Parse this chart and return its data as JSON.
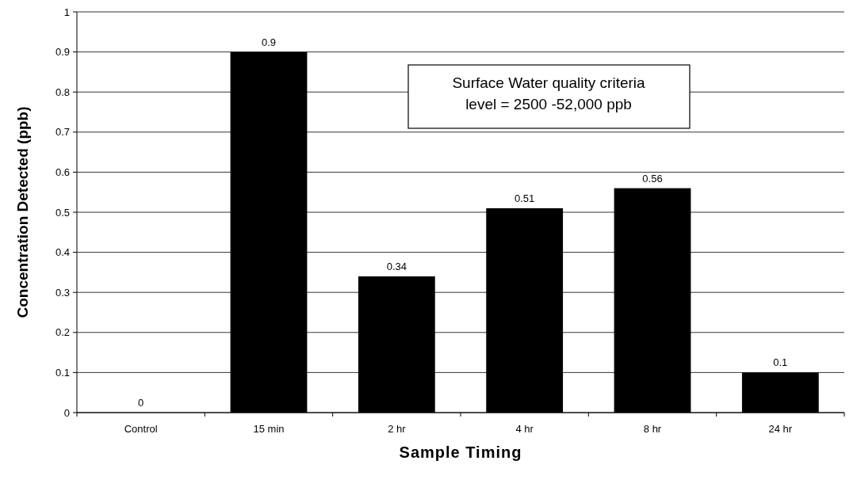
{
  "chart_data": {
    "type": "bar",
    "xlabel": "Sample Timing",
    "ylabel": "Concentration Detected (ppb)",
    "categories": [
      "Control",
      "15 min",
      "2 hr",
      "4 hr",
      "8 hr",
      "24 hr"
    ],
    "values": [
      0,
      0.9,
      0.34,
      0.51,
      0.56,
      0.1
    ],
    "color": "#000000",
    "ylim": [
      0,
      1
    ],
    "yticks": [
      0,
      0.1,
      0.2,
      0.3,
      0.4,
      0.5,
      0.6,
      0.7,
      0.8,
      0.9,
      1
    ],
    "grid": "y",
    "data_labels": true,
    "annotations": [
      "Surface Water quality criteria\nlevel = 2500 -52,000 ppb"
    ]
  }
}
